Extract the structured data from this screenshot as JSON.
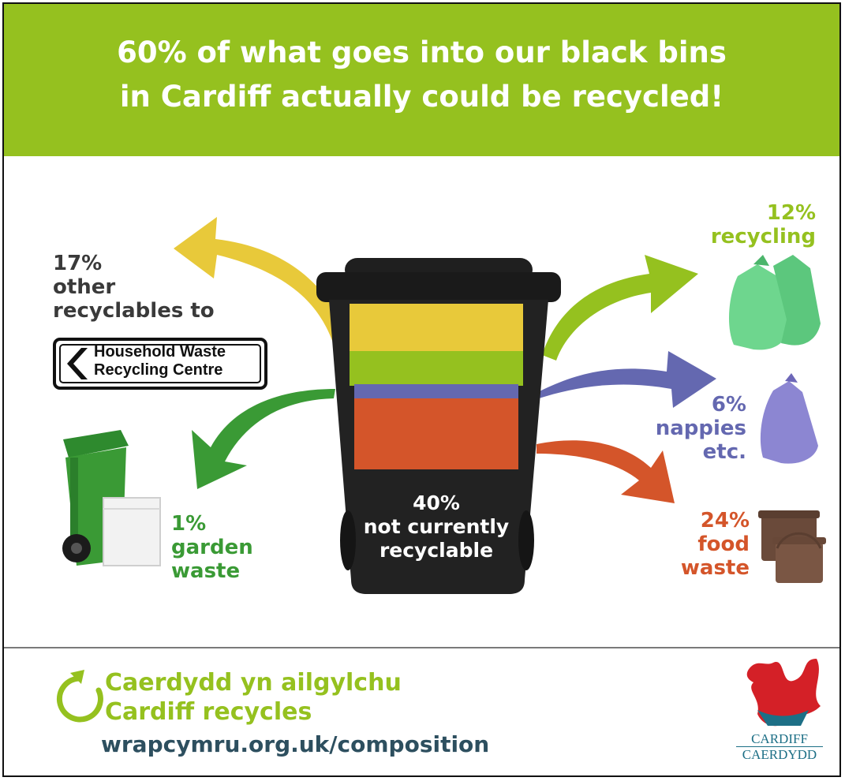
{
  "title": {
    "line1": "60% of what goes into our black bins",
    "line2": "in Cardiff actually could be recycled!"
  },
  "segments": {
    "other_recyclables": {
      "percent": "17%",
      "line1": "other",
      "line2": "recyclables to",
      "value": 17,
      "color": "#e8c93a"
    },
    "recycling": {
      "percent": "12%",
      "label": "recycling",
      "value": 12,
      "color": "#95c11f"
    },
    "nappies": {
      "percent": "6%",
      "line1": "nappies",
      "line2": "etc.",
      "value": 6,
      "color": "#6468b0"
    },
    "food_waste": {
      "percent": "24%",
      "line1": "food",
      "line2": "waste",
      "value": 24,
      "color": "#d4552a"
    },
    "garden_waste": {
      "percent": "1%",
      "line1": "garden",
      "line2": "waste",
      "value": 1,
      "color": "#3a9a35"
    },
    "not_recyclable": {
      "percent": "40%",
      "line1": "not currently",
      "line2": "recyclable",
      "value": 40,
      "color": "#1f1f1f"
    }
  },
  "sign": {
    "line1": "Household Waste",
    "line2": "Recycling Centre"
  },
  "footer": {
    "tagline_welsh": "Caerdydd yn ailgylchu",
    "tagline_english": "Cardiff recycles",
    "url": "wrapcymru.org.uk/composition",
    "crest_line1": "CARDIFF",
    "crest_line2": "CAERDYDD"
  },
  "colors": {
    "header_green": "#95c11f",
    "dark_text": "#3a3a3a",
    "url_teal": "#2d4f5f",
    "crest_teal": "#1d6f86",
    "crest_red": "#d42027"
  },
  "icons": [
    "recycle-arrow-icon",
    "dragon-crest-icon",
    "green-wheelie-bin-icon",
    "garden-sack-icon",
    "green-bags-icon",
    "purple-bag-icon",
    "food-caddy-icon",
    "black-bin-icon"
  ]
}
